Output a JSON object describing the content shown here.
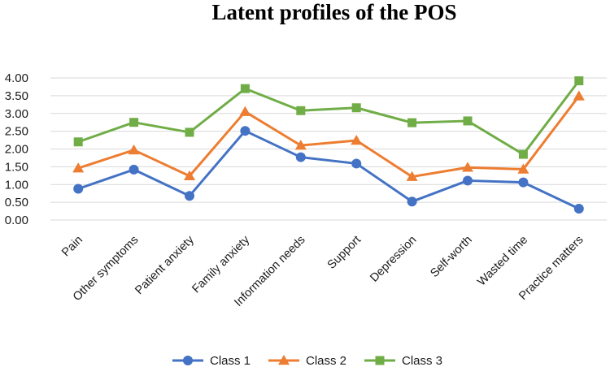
{
  "chart_data": {
    "type": "line",
    "title": "Latent profiles of  the POS",
    "xlabel": "",
    "ylabel": "",
    "ylim": [
      0,
      4
    ],
    "y_ticks": [
      "0.00",
      "0.50",
      "1.00",
      "1.50",
      "2.00",
      "2.50",
      "3.00",
      "3.50",
      "4.00"
    ],
    "grid": true,
    "legend_position": "bottom",
    "categories": [
      "Pain",
      "Other symptoms",
      "Patient anxiety",
      "Family anxiety",
      "Information needs",
      "Support",
      "Depression",
      "Self-worth",
      "Wasted time",
      "Practice matters"
    ],
    "series": [
      {
        "name": "Class 1",
        "color": "#4472c4",
        "marker": "circle",
        "values": [
          0.88,
          1.42,
          0.68,
          2.51,
          1.77,
          1.59,
          0.52,
          1.11,
          1.06,
          0.32
        ]
      },
      {
        "name": "Class 2",
        "color": "#ed7d31",
        "marker": "triangle",
        "values": [
          1.46,
          1.97,
          1.24,
          3.05,
          2.1,
          2.24,
          1.22,
          1.48,
          1.43,
          3.49
        ]
      },
      {
        "name": "Class 3",
        "color": "#70ad47",
        "marker": "square",
        "values": [
          2.2,
          2.75,
          2.47,
          3.7,
          3.08,
          3.16,
          2.74,
          2.79,
          1.85,
          3.92
        ]
      }
    ]
  }
}
